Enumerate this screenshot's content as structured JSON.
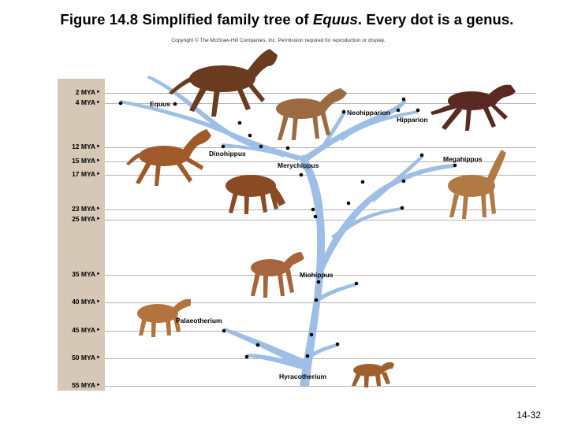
{
  "header": {
    "title_pre": "Figure 14.8 Simplified family tree of ",
    "title_italic": "Equus",
    "title_post": ". Every dot is a genus.",
    "copyright": "Copyright © The McGraw-Hill Companies, Inc. Permission required for reproduction or display."
  },
  "timeline": {
    "ticks": [
      "2 MYA",
      "4 MYA",
      "12 MYA",
      "15 MYA",
      "17 MYA",
      "23 MYA",
      "25 MYA",
      "35 MYA",
      "40 MYA",
      "45 MYA",
      "50 MYA",
      "55 MYA"
    ]
  },
  "genera": {
    "equus": "Equus",
    "neohipparion": "Neohipparion",
    "hipparion": "Hipparion",
    "dinohippus": "Dinohippus",
    "merychippus": "Merychippus",
    "megahippus": "Megahippus",
    "miohippus": "Miohippus",
    "palaeotherium": "Palaeotherium",
    "hyracotherium": "Hyracotherium"
  },
  "colors": {
    "branch": "#9dbfe6",
    "timeband": "#d6c8b6",
    "gridline": "#b3b3b3"
  },
  "footer": {
    "slide_number": "14-32"
  }
}
